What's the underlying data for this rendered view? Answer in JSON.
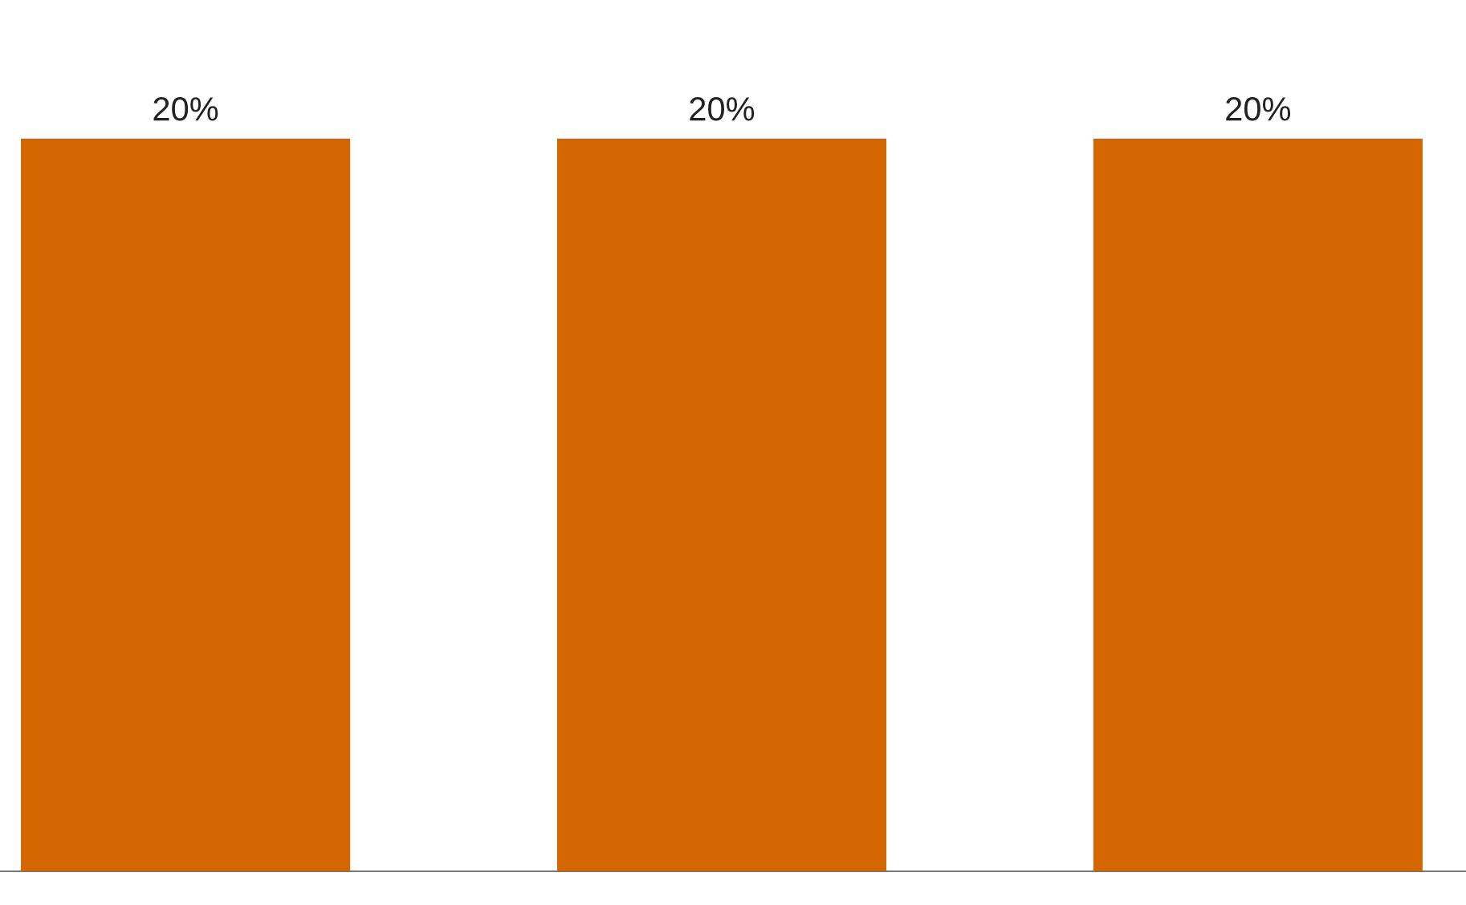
{
  "chart_data": {
    "type": "bar",
    "categories": [
      null,
      null,
      null
    ],
    "values": [
      20,
      20,
      20
    ],
    "value_labels": [
      "20%",
      "20%",
      "20%"
    ],
    "color": "#d46600",
    "grid": false,
    "legend": false
  }
}
